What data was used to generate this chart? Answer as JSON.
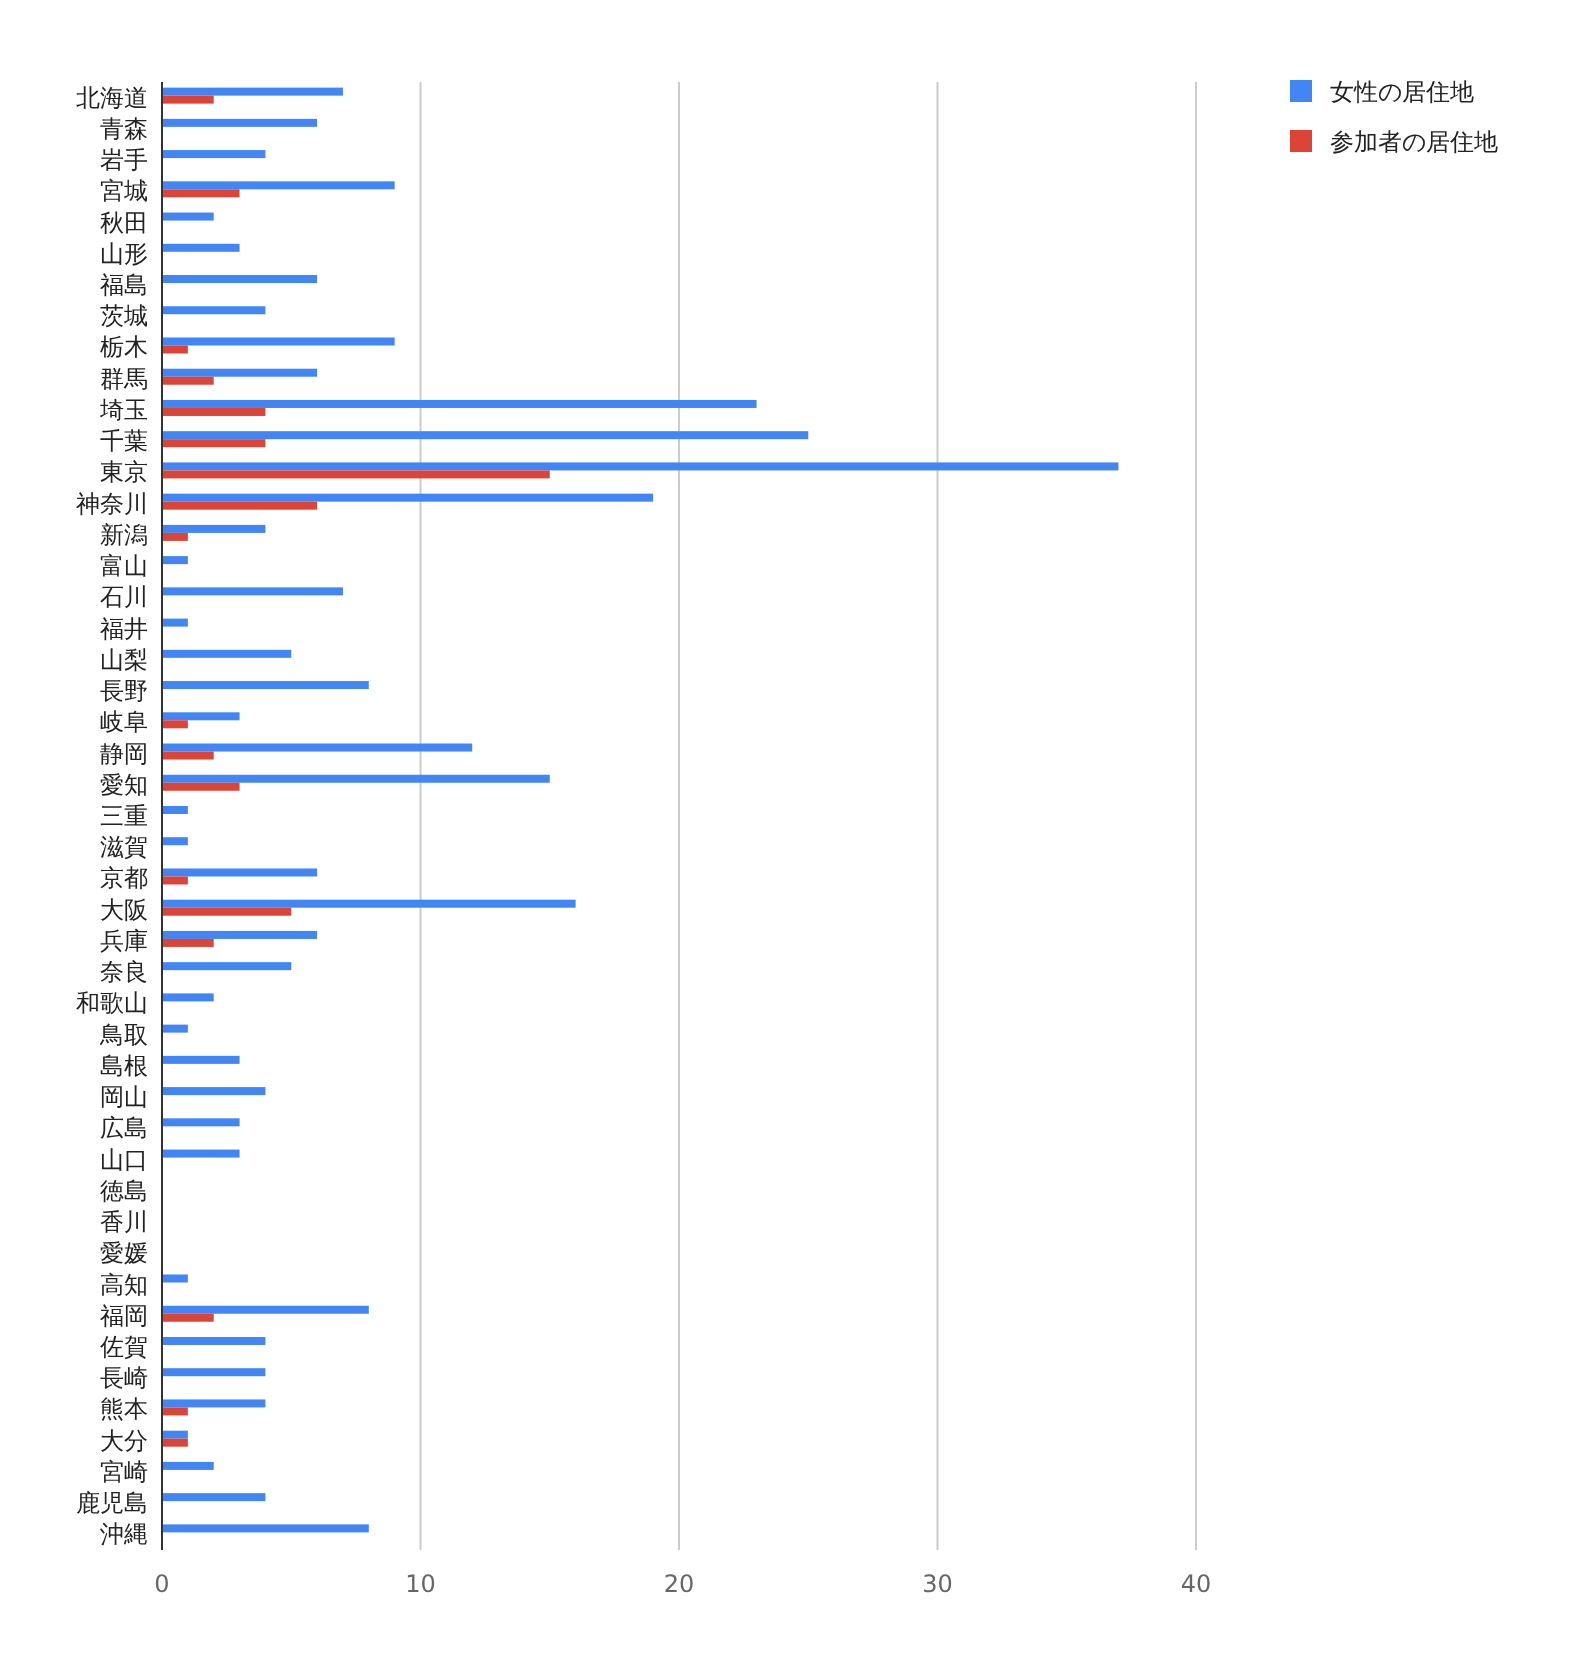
{
  "chart_data": {
    "type": "bar",
    "orientation": "horizontal",
    "categories": [
      "北海道",
      "青森",
      "岩手",
      "宮城",
      "秋田",
      "山形",
      "福島",
      "茨城",
      "栃木",
      "群馬",
      "埼玉",
      "千葉",
      "東京",
      "神奈川",
      "新潟",
      "富山",
      "石川",
      "福井",
      "山梨",
      "長野",
      "岐阜",
      "静岡",
      "愛知",
      "三重",
      "滋賀",
      "京都",
      "大阪",
      "兵庫",
      "奈良",
      "和歌山",
      "鳥取",
      "島根",
      "岡山",
      "広島",
      "山口",
      "徳島",
      "香川",
      "愛媛",
      "高知",
      "福岡",
      "佐賀",
      "長崎",
      "熊本",
      "大分",
      "宮崎",
      "鹿児島",
      "沖縄"
    ],
    "series": [
      {
        "name": "女性の居住地",
        "color": "#4285f4",
        "values": [
          7,
          6,
          4,
          9,
          2,
          3,
          6,
          4,
          9,
          6,
          23,
          25,
          37,
          19,
          4,
          1,
          7,
          1,
          5,
          8,
          3,
          12,
          15,
          1,
          1,
          6,
          16,
          6,
          5,
          2,
          1,
          3,
          4,
          3,
          3,
          0,
          0,
          0,
          1,
          8,
          4,
          4,
          4,
          1,
          2,
          4,
          8
        ]
      },
      {
        "name": "参加者の居住地",
        "color": "#db4437",
        "values": [
          2,
          0,
          0,
          3,
          0,
          0,
          0,
          0,
          1,
          2,
          4,
          4,
          15,
          6,
          1,
          0,
          0,
          0,
          0,
          0,
          1,
          2,
          3,
          0,
          0,
          1,
          5,
          2,
          0,
          0,
          0,
          0,
          0,
          0,
          0,
          0,
          0,
          0,
          0,
          2,
          0,
          0,
          1,
          1,
          0,
          0,
          0
        ]
      }
    ],
    "xlim": [
      0,
      40
    ],
    "xticks": [
      0,
      10,
      20,
      30,
      40
    ],
    "grid": "x",
    "legend": "top right"
  }
}
